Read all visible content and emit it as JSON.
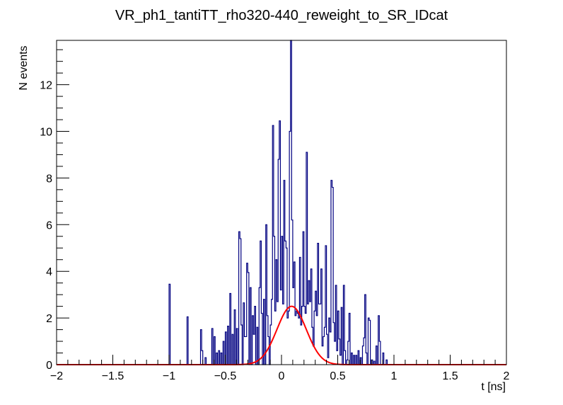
{
  "chart_data": {
    "type": "histogram",
    "title": "VR_ph1_tantiTT_rho320-440_reweight_to_SR_IDcat",
    "xlabel": "t [ns]",
    "ylabel": "N events",
    "xlim": [
      -2,
      2
    ],
    "ylim": [
      0,
      13.9
    ],
    "x_ticks": [
      -2,
      -1.5,
      -1,
      -0.5,
      0,
      0.5,
      1,
      1.5,
      2
    ],
    "x_tick_labels": [
      "−2",
      "−1.5",
      "−1",
      "−0.5",
      "0",
      "0.5",
      "1",
      "1.5",
      "2"
    ],
    "y_ticks": [
      0,
      2,
      4,
      6,
      8,
      10,
      12
    ],
    "y_tick_labels": [
      "0",
      "2",
      "4",
      "6",
      "8",
      "10",
      "12"
    ],
    "histogram": {
      "name": "data",
      "color": "#000080",
      "bin_width": 0.01,
      "bins": [
        [
          -1.0,
          3.45
        ],
        [
          -0.84,
          2.05
        ],
        [
          -0.72,
          1.5
        ],
        [
          -0.71,
          0.6
        ],
        [
          -0.68,
          0.3
        ],
        [
          -0.62,
          1.55
        ],
        [
          -0.6,
          1.2
        ],
        [
          -0.58,
          0.5
        ],
        [
          -0.56,
          0.6
        ],
        [
          -0.54,
          0.5
        ],
        [
          -0.52,
          1.0
        ],
        [
          -0.5,
          1.4
        ],
        [
          -0.48,
          1.65
        ],
        [
          -0.46,
          3.05
        ],
        [
          -0.44,
          1.3
        ],
        [
          -0.42,
          2.35
        ],
        [
          -0.4,
          1.55
        ],
        [
          -0.38,
          5.7
        ],
        [
          -0.37,
          5.4
        ],
        [
          -0.36,
          1.7
        ],
        [
          -0.34,
          2.65
        ],
        [
          -0.33,
          1.2
        ],
        [
          -0.32,
          1.2
        ],
        [
          -0.31,
          4.35
        ],
        [
          -0.3,
          3.95
        ],
        [
          -0.28,
          3.3
        ],
        [
          -0.26,
          2.1
        ],
        [
          -0.25,
          1.3
        ],
        [
          -0.24,
          2.5
        ],
        [
          -0.22,
          1.6
        ],
        [
          -0.2,
          3.3
        ],
        [
          -0.19,
          5.3
        ],
        [
          -0.18,
          2.2
        ],
        [
          -0.16,
          2.8
        ],
        [
          -0.14,
          6.0
        ],
        [
          -0.13,
          2.1
        ],
        [
          -0.12,
          1.2
        ],
        [
          -0.1,
          1.7
        ],
        [
          -0.09,
          2.8
        ],
        [
          -0.08,
          10.25
        ],
        [
          -0.07,
          5.5
        ],
        [
          -0.06,
          2.3
        ],
        [
          -0.05,
          4.5
        ],
        [
          -0.04,
          2.7
        ],
        [
          -0.03,
          8.8
        ],
        [
          -0.02,
          10.45
        ],
        [
          -0.01,
          3.2
        ],
        [
          0.0,
          5.5
        ],
        [
          0.01,
          2.6
        ],
        [
          0.02,
          7.9
        ],
        [
          0.03,
          5.3
        ],
        [
          0.04,
          5.0
        ],
        [
          0.05,
          2.0
        ],
        [
          0.06,
          2.3
        ],
        [
          0.07,
          10.0
        ],
        [
          0.08,
          13.9
        ],
        [
          0.09,
          6.2
        ],
        [
          0.1,
          3.3
        ],
        [
          0.11,
          4.4
        ],
        [
          0.12,
          2.1
        ],
        [
          0.13,
          2.3
        ],
        [
          0.14,
          2.2
        ],
        [
          0.15,
          2.0
        ],
        [
          0.16,
          4.6
        ],
        [
          0.17,
          1.7
        ],
        [
          0.18,
          2.5
        ],
        [
          0.19,
          5.7
        ],
        [
          0.2,
          2.5
        ],
        [
          0.21,
          2.2
        ],
        [
          0.22,
          9.1
        ],
        [
          0.23,
          2.6
        ],
        [
          0.24,
          3.6
        ],
        [
          0.25,
          2.7
        ],
        [
          0.26,
          4.1
        ],
        [
          0.27,
          1.6
        ],
        [
          0.28,
          0.8
        ],
        [
          0.29,
          2.3
        ],
        [
          0.3,
          3.15
        ],
        [
          0.31,
          2.1
        ],
        [
          0.32,
          5.2
        ],
        [
          0.33,
          2.6
        ],
        [
          0.34,
          2.6
        ],
        [
          0.35,
          4.1
        ],
        [
          0.36,
          0.8
        ],
        [
          0.37,
          1.2
        ],
        [
          0.38,
          1.6
        ],
        [
          0.39,
          5.1
        ],
        [
          0.4,
          1.3
        ],
        [
          0.41,
          0.3
        ],
        [
          0.42,
          2.0
        ],
        [
          0.43,
          1.4
        ],
        [
          0.44,
          7.9
        ],
        [
          0.45,
          7.6
        ],
        [
          0.46,
          1.8
        ],
        [
          0.47,
          1.0
        ],
        [
          0.48,
          3.4
        ],
        [
          0.49,
          0.6
        ],
        [
          0.5,
          2.3
        ],
        [
          0.51,
          1.1
        ],
        [
          0.52,
          0.4
        ],
        [
          0.53,
          2.45
        ],
        [
          0.55,
          3.4
        ],
        [
          0.56,
          0.6
        ],
        [
          0.58,
          0.2
        ],
        [
          0.59,
          1.0
        ],
        [
          0.6,
          2.2
        ],
        [
          0.62,
          0.5
        ],
        [
          0.64,
          0.4
        ],
        [
          0.66,
          0.4
        ],
        [
          0.68,
          0.6
        ],
        [
          0.7,
          0.3
        ],
        [
          0.72,
          0.8
        ],
        [
          0.73,
          1.15
        ],
        [
          0.74,
          3.0
        ],
        [
          0.75,
          0.5
        ],
        [
          0.77,
          2.0
        ],
        [
          0.78,
          1.9
        ],
        [
          0.8,
          0.2
        ],
        [
          0.82,
          0.15
        ],
        [
          0.84,
          0.8
        ],
        [
          0.86,
          2.1
        ],
        [
          0.87,
          1.0
        ],
        [
          0.9,
          0.5
        ],
        [
          0.93,
          0.2
        ]
      ]
    },
    "fit": {
      "name": "gaussian-fit",
      "color": "#ff0000",
      "function": "gaussian",
      "amplitude": 2.5,
      "mean": 0.09,
      "sigma": 0.13
    }
  }
}
